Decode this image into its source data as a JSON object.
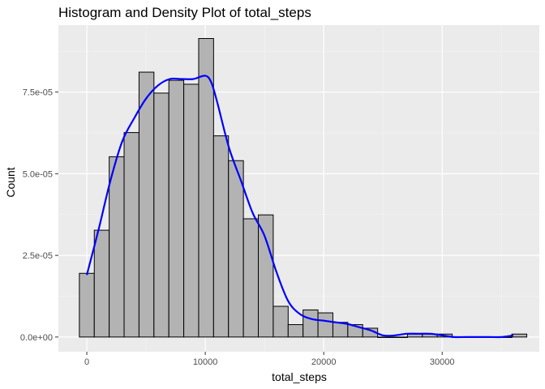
{
  "chart_data": {
    "type": "bar",
    "subtype": "histogram-with-density",
    "title": "Histogram and Density Plot of total_steps",
    "xlabel": "total_steps",
    "ylabel": "Count",
    "xlim": [
      -2400,
      38200
    ],
    "ylim": [
      -4.5e-06,
      9.55e-05
    ],
    "x_ticks": [
      0,
      10000,
      20000,
      30000
    ],
    "x_tick_labels": [
      "0",
      "10000",
      "20000",
      "30000"
    ],
    "y_ticks": [
      0,
      2.5e-05,
      5e-05,
      7.5e-05
    ],
    "y_tick_labels": [
      "0.0e+00",
      "2.5e-05",
      "5.0e-05",
      "7.5e-05"
    ],
    "grid": true,
    "legend": "none",
    "bin_width": 1259,
    "bins": [
      {
        "center": 0,
        "value": 1.95e-05
      },
      {
        "center": 1259,
        "value": 3.27e-05
      },
      {
        "center": 2518,
        "value": 5.52e-05
      },
      {
        "center": 3777,
        "value": 6.26e-05
      },
      {
        "center": 5036,
        "value": 8.11e-05
      },
      {
        "center": 6295,
        "value": 7.47e-05
      },
      {
        "center": 7554,
        "value": 7.86e-05
      },
      {
        "center": 8813,
        "value": 7.74e-05
      },
      {
        "center": 10072,
        "value": 9.14e-05
      },
      {
        "center": 11331,
        "value": 6.16e-05
      },
      {
        "center": 12590,
        "value": 5.4e-05
      },
      {
        "center": 13849,
        "value": 3.62e-05
      },
      {
        "center": 15108,
        "value": 3.74e-05
      },
      {
        "center": 16367,
        "value": 9.4e-06
      },
      {
        "center": 17626,
        "value": 3.8e-06
      },
      {
        "center": 18885,
        "value": 8.3e-06
      },
      {
        "center": 20144,
        "value": 7.4e-06
      },
      {
        "center": 21403,
        "value": 4.5e-06
      },
      {
        "center": 22662,
        "value": 3.8e-06
      },
      {
        "center": 23921,
        "value": 2.7e-06
      },
      {
        "center": 25180,
        "value": 0.0
      },
      {
        "center": 26439,
        "value": 0.0
      },
      {
        "center": 27698,
        "value": 9e-07
      },
      {
        "center": 28957,
        "value": 9e-07
      },
      {
        "center": 30216,
        "value": 9e-07
      },
      {
        "center": 31475,
        "value": 0.0
      },
      {
        "center": 32734,
        "value": 0.0
      },
      {
        "center": 33993,
        "value": 0.0
      },
      {
        "center": 35252,
        "value": 0.0
      },
      {
        "center": 36511,
        "value": 9e-07
      }
    ],
    "density": {
      "x": [
        0,
        1000,
        2000,
        3000,
        4000,
        5000,
        6000,
        7000,
        8000,
        9000,
        10000,
        10500,
        11000,
        12000,
        13000,
        14000,
        15000,
        16000,
        17000,
        18000,
        19000,
        20000,
        21000,
        22000,
        23000,
        24000,
        25000,
        26000,
        27000,
        28000,
        29000,
        30000,
        31000,
        32000,
        33000,
        34000,
        35000,
        36000
      ],
      "y": [
        1.9e-05,
        3.3e-05,
        4.8e-05,
        6e-05,
        6.7e-05,
        7.3e-05,
        7.7e-05,
        7.9e-05,
        7.9e-05,
        7.9e-05,
        8e-05,
        7.8e-05,
        7.2e-05,
        5.8e-05,
        4.8e-05,
        3.8e-05,
        3.1e-05,
        2e-05,
        1.1e-05,
        7e-06,
        5.5e-06,
        5e-06,
        4.5e-06,
        4e-06,
        3e-06,
        2e-06,
        5e-07,
        5e-07,
        1e-06,
        1e-06,
        1e-06,
        5e-07,
        0.0,
        0.0,
        0.0,
        0.0,
        0.0,
        5e-07
      ]
    },
    "colors": {
      "panel_background": "#ebebeb",
      "grid_major": "#ffffff",
      "grid_minor": "#f5f5f5",
      "bar_fill": "#b3b3b3",
      "bar_stroke": "#000000",
      "density_line": "#0000ff",
      "tick_color": "#333333"
    }
  }
}
